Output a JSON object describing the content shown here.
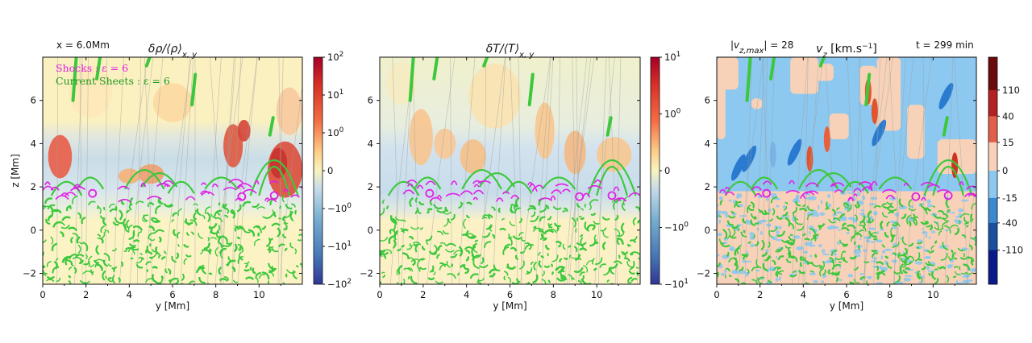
{
  "colors": {
    "shock": "#e11ee6",
    "current_sheet": "#3cc83c",
    "diverging_low": "#3a4ba0",
    "diverging_mid": "#f7f4bf",
    "diverging_high": "#b2182b",
    "vz_negative_strong": "#0a1a8a",
    "vz_negative": "#8cc8f0",
    "vz_positive": "#f8d2b8",
    "vz_positive_strong": "#6a0a0a"
  },
  "figure_annotations": {
    "position_label": "x = 6.0Mm",
    "vmax_label": "|v",
    "vmax_sub": "z,max",
    "vmax_value": "| = 28",
    "time_label": "t = 299 min"
  },
  "chart_data": [
    {
      "type": "heatmap",
      "title_main": "δρ/⟨ρ⟩",
      "title_sub": "x, y",
      "xlabel": "y [Mm]",
      "ylabel": "z [Mm]",
      "xlim": [
        0,
        12
      ],
      "ylim": [
        -2.5,
        8
      ],
      "x_ticks": [
        "0",
        "2",
        "4",
        "6",
        "8",
        "10"
      ],
      "y_ticks": [
        "−2",
        "0",
        "2",
        "4",
        "6"
      ],
      "colorbar": {
        "scale": "symlog",
        "tick_labels": [
          {
            "base": "10",
            "exp": "2"
          },
          {
            "base": "10",
            "exp": "1"
          },
          {
            "base": "10",
            "exp": "0"
          },
          {
            "base": "0",
            "exp": ""
          },
          {
            "base": "−10",
            "exp": "0"
          },
          {
            "base": "−10",
            "exp": "1"
          },
          {
            "base": "−10",
            "exp": "2"
          }
        ]
      },
      "legend": [
        {
          "label": "Shocks : ε = 6",
          "color": "#e11ee6"
        },
        {
          "label": "Current Sheets : ε = 6",
          "color": "#3cc83c"
        }
      ]
    },
    {
      "type": "heatmap",
      "title_main": "δT/⟨T⟩",
      "title_sub": "x, y",
      "xlabel": "y [Mm]",
      "xlim": [
        0,
        12
      ],
      "ylim": [
        -2.5,
        8
      ],
      "x_ticks": [
        "0",
        "2",
        "4",
        "6",
        "8",
        "10"
      ],
      "y_ticks": [
        "−2",
        "0",
        "2",
        "4",
        "6"
      ],
      "colorbar": {
        "scale": "symlog",
        "tick_labels": [
          {
            "base": "10",
            "exp": "1"
          },
          {
            "base": "10",
            "exp": "0"
          },
          {
            "base": "0",
            "exp": ""
          },
          {
            "base": "−10",
            "exp": "0"
          },
          {
            "base": "−10",
            "exp": "1"
          }
        ]
      }
    },
    {
      "type": "heatmap",
      "title_main": "v",
      "title_sub": "z",
      "title_units": "[km.s",
      "title_units_exp": "−1",
      "title_units_end": "]",
      "xlabel": "y [Mm]",
      "xlim": [
        0,
        12
      ],
      "ylim": [
        -2.5,
        8
      ],
      "x_ticks": [
        "0",
        "2",
        "4",
        "6",
        "8",
        "10"
      ],
      "y_ticks": [
        "−2",
        "0",
        "2",
        "4",
        "6"
      ],
      "colorbar": {
        "scale": "discrete",
        "tick_labels": [
          "110",
          "40",
          "15",
          "0",
          "-15",
          "-40",
          "-110"
        ]
      }
    }
  ]
}
